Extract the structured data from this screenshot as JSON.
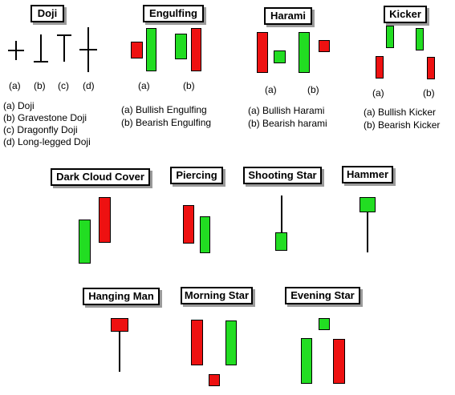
{
  "patterns": [
    {
      "title": "Doji",
      "labels": [
        "(a)",
        "(b)",
        "(c)",
        "(d)"
      ],
      "descriptions": [
        "(a) Doji",
        "(b) Gravestone Doji",
        "(c) Dragonfly Doji",
        "(d) Long-legged Doji"
      ]
    },
    {
      "title": "Engulfing",
      "labels": [
        "(a)",
        "(b)"
      ],
      "descriptions": [
        "(a) Bullish Engulfing",
        "(b) Bearish Engulfing"
      ]
    },
    {
      "title": "Harami",
      "labels": [
        "(a)",
        "(b)"
      ],
      "descriptions": [
        "(a) Bullish Harami",
        "(b) Bearish harami"
      ]
    },
    {
      "title": "Kicker",
      "labels": [
        "(a)",
        "(b)"
      ],
      "descriptions": [
        "(a) Bullish Kicker",
        "(b) Bearish Kicker"
      ]
    },
    {
      "title": "Dark Cloud Cover"
    },
    {
      "title": "Piercing"
    },
    {
      "title": "Shooting Star"
    },
    {
      "title": "Hammer"
    },
    {
      "title": "Hanging Man"
    },
    {
      "title": "Morning Star"
    },
    {
      "title": "Evening Star"
    }
  ],
  "colors": {
    "bullish": "#22dd22",
    "bearish": "#ee1111",
    "wick": "#000000"
  }
}
